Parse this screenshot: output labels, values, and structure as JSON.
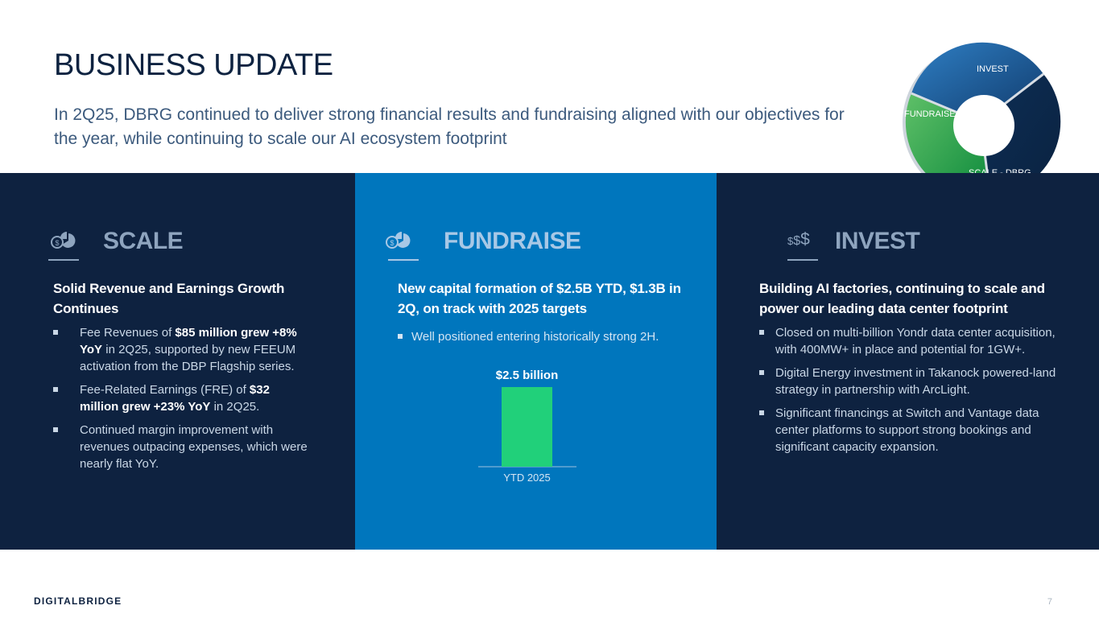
{
  "header": {
    "title": "BUSINESS UPDATE",
    "subtitle": "In 2Q25, DBRG continued to deliver strong financial results and fundraising aligned with our objectives for the year, while continuing to scale our AI ecosystem footprint"
  },
  "cycle_graphic": {
    "labels": [
      "INVEST",
      "FUNDRAISE",
      "SCALE - DBRG"
    ],
    "colors": {
      "invest": "#1b5a9a",
      "fundraise": "#1aa24a",
      "scale": "#0b2a4e",
      "rim": "#c7ced6"
    }
  },
  "columns": {
    "scale": {
      "icon": "pie-money-icon",
      "title": "SCALE",
      "subtitle": "Solid Revenue and Earnings Growth Continues",
      "bullets": [
        {
          "pre": "Fee Revenues of ",
          "bold": "$85 million grew +8% YoY",
          "post": " in 2Q25, supported by new FEEUM activation from the DBP Flagship series."
        },
        {
          "pre": "Fee-Related Earnings (FRE) of ",
          "bold": "$32 million grew +23% YoY",
          "post": " in 2Q25."
        },
        {
          "pre": "Continued margin improvement with revenues outpacing expenses, which were nearly flat YoY.",
          "bold": "",
          "post": ""
        }
      ]
    },
    "fundraise": {
      "icon": "pie-money-icon",
      "title": "FUNDRAISE",
      "subtitle": "New capital formation of $2.5B YTD, $1.3B in 2Q, on track with 2025 targets",
      "bullets": [
        {
          "text": "Well positioned entering historically strong 2H."
        }
      ]
    },
    "invest": {
      "icon": "dollar-signs-icon",
      "icon_text": "$$$",
      "title": "INVEST",
      "subtitle": "Building AI factories, continuing to scale and power our leading data center footprint",
      "bullets": [
        {
          "text": "Closed on multi-billion Yondr data center acquisition, with 400MW+ in place and potential for 1GW+."
        },
        {
          "text": "Digital Energy investment in Takanock powered-land strategy in partnership with ArcLight."
        },
        {
          "text": "Significant financings at Switch and Vantage data center platforms to support strong bookings and significant capacity expansion."
        }
      ]
    }
  },
  "chart_data": {
    "type": "bar",
    "categories": [
      "YTD 2025"
    ],
    "values": [
      2.5
    ],
    "data_labels": [
      "$2.5 billion"
    ],
    "title": "",
    "xlabel": "",
    "ylabel": "",
    "ylim": [
      0,
      2.5
    ],
    "color": "#21d07a"
  },
  "footer": {
    "logo_bold": "DIGITAL",
    "logo_rest": "BRIDGE",
    "page_number": "7"
  }
}
